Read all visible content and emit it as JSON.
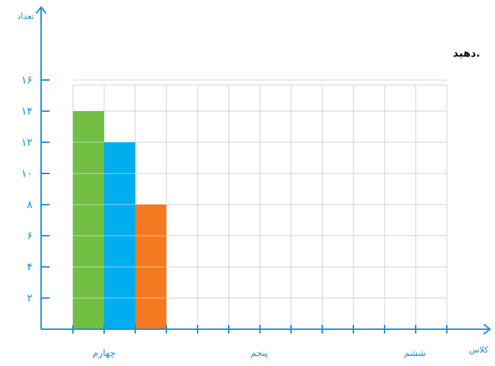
{
  "note": "دهید.",
  "chart_data": {
    "type": "bar",
    "xlabel": "کلاس",
    "ylabel": "تعداد",
    "ylim": [
      0,
      16
    ],
    "yticks": [
      2,
      4,
      6,
      8,
      10,
      12,
      14,
      16
    ],
    "ytick_labels": [
      "۲",
      "۴",
      "۶",
      "۸",
      "۱۰",
      "۱۲",
      "۱۴",
      "۱۶"
    ],
    "grid": true,
    "categories": [
      "چهارم",
      "پنجم",
      "ششم"
    ],
    "bars": [
      {
        "category": "چهارم",
        "value": 14,
        "color": "#72bf44"
      },
      {
        "category": "چهارم",
        "value": 12,
        "color": "#00aeef"
      },
      {
        "category": "چهارم",
        "value": 8,
        "color": "#f47920"
      }
    ]
  },
  "colors": {
    "axis": "#1a8fd8",
    "grid": "#cfcfcf"
  }
}
